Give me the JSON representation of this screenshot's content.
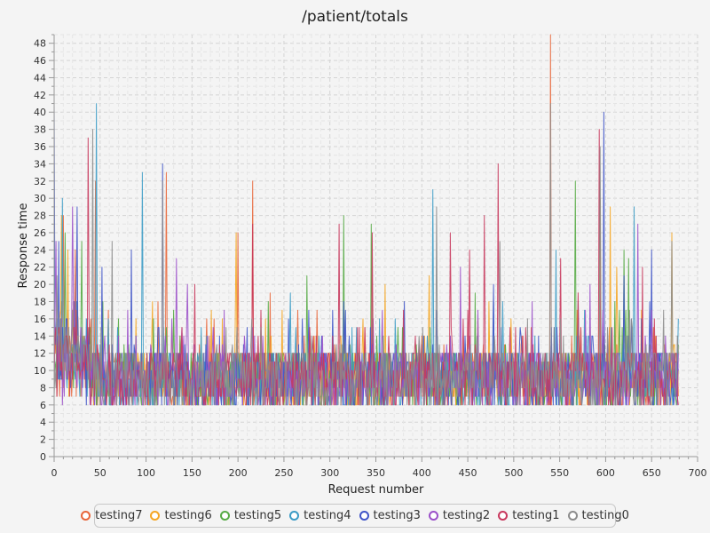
{
  "chart_data": {
    "type": "line",
    "title": "/patient/totals",
    "xlabel": "Request number",
    "ylabel": "Response time",
    "xlim": [
      0,
      700
    ],
    "ylim": [
      0,
      49
    ],
    "x_ticks": [
      0,
      50,
      100,
      150,
      200,
      250,
      300,
      350,
      400,
      450,
      500,
      550,
      600,
      650,
      700
    ],
    "y_ticks": [
      0,
      2,
      4,
      6,
      8,
      10,
      12,
      14,
      16,
      18,
      20,
      22,
      24,
      26,
      28,
      30,
      32,
      34,
      36,
      38,
      40,
      42,
      44,
      46,
      48
    ],
    "grid": true,
    "legend_position": "bottom",
    "points_per_series": 680,
    "series": [
      {
        "name": "testing7",
        "color": "#e8663a",
        "typical_range": [
          4,
          18
        ],
        "peaks": [
          [
            10,
            28
          ],
          [
            23,
            24
          ],
          [
            45,
            32
          ],
          [
            122,
            33
          ],
          [
            200,
            26
          ],
          [
            216,
            32
          ],
          [
            235,
            19
          ],
          [
            265,
            17
          ],
          [
            540,
            49
          ]
        ]
      },
      {
        "name": "testing6",
        "color": "#f5a623",
        "typical_range": [
          4,
          18
        ],
        "peaks": [
          [
            8,
            28
          ],
          [
            15,
            24
          ],
          [
            107,
            18
          ],
          [
            198,
            26
          ],
          [
            360,
            20
          ],
          [
            408,
            21
          ],
          [
            473,
            18
          ],
          [
            594,
            30
          ],
          [
            605,
            29
          ],
          [
            612,
            22
          ],
          [
            672,
            26
          ]
        ]
      },
      {
        "name": "testing5",
        "color": "#55aa44",
        "typical_range": [
          4,
          18
        ],
        "peaks": [
          [
            12,
            26
          ],
          [
            30,
            25
          ],
          [
            130,
            17
          ],
          [
            233,
            18
          ],
          [
            275,
            21
          ],
          [
            315,
            28
          ],
          [
            345,
            27
          ],
          [
            458,
            19
          ],
          [
            567,
            32
          ],
          [
            620,
            24
          ],
          [
            625,
            23
          ]
        ]
      },
      {
        "name": "testing4",
        "color": "#3b9bc5",
        "typical_range": [
          4,
          18
        ],
        "peaks": [
          [
            9,
            30
          ],
          [
            46,
            41
          ],
          [
            96,
            33
          ],
          [
            257,
            19
          ],
          [
            412,
            31
          ],
          [
            488,
            18
          ],
          [
            546,
            24
          ],
          [
            631,
            29
          ],
          [
            679,
            16
          ]
        ]
      },
      {
        "name": "testing3",
        "color": "#4055c8",
        "typical_range": [
          4,
          18
        ],
        "peaks": [
          [
            0,
            41
          ],
          [
            5,
            25
          ],
          [
            25,
            29
          ],
          [
            52,
            22
          ],
          [
            84,
            24
          ],
          [
            118,
            34
          ],
          [
            315,
            18
          ],
          [
            381,
            18
          ],
          [
            478,
            20
          ],
          [
            598,
            40
          ],
          [
            620,
            21
          ],
          [
            650,
            24
          ]
        ]
      },
      {
        "name": "testing2",
        "color": "#9b50c9",
        "typical_range": [
          4,
          18
        ],
        "peaks": [
          [
            2,
            25
          ],
          [
            20,
            29
          ],
          [
            133,
            23
          ],
          [
            145,
            20
          ],
          [
            185,
            17
          ],
          [
            347,
            16
          ],
          [
            442,
            22
          ],
          [
            520,
            18
          ],
          [
            583,
            20
          ],
          [
            635,
            27
          ]
        ]
      },
      {
        "name": "testing1",
        "color": "#c8385d",
        "typical_range": [
          3,
          18
        ],
        "peaks": [
          [
            37,
            37
          ],
          [
            153,
            20
          ],
          [
            216,
            27
          ],
          [
            225,
            17
          ],
          [
            310,
            27
          ],
          [
            346,
            26
          ],
          [
            431,
            26
          ],
          [
            452,
            24
          ],
          [
            468,
            28
          ],
          [
            483,
            34
          ],
          [
            551,
            23
          ],
          [
            570,
            19
          ],
          [
            593,
            38
          ],
          [
            640,
            22
          ]
        ]
      },
      {
        "name": "testing0",
        "color": "#8c8c8c",
        "typical_range": [
          4,
          18
        ],
        "peaks": [
          [
            3,
            21
          ],
          [
            42,
            38
          ],
          [
            63,
            25
          ],
          [
            118,
            32
          ],
          [
            416,
            29
          ],
          [
            485,
            25
          ],
          [
            540,
            41
          ],
          [
            594,
            36
          ],
          [
            672,
            25
          ]
        ]
      }
    ]
  }
}
